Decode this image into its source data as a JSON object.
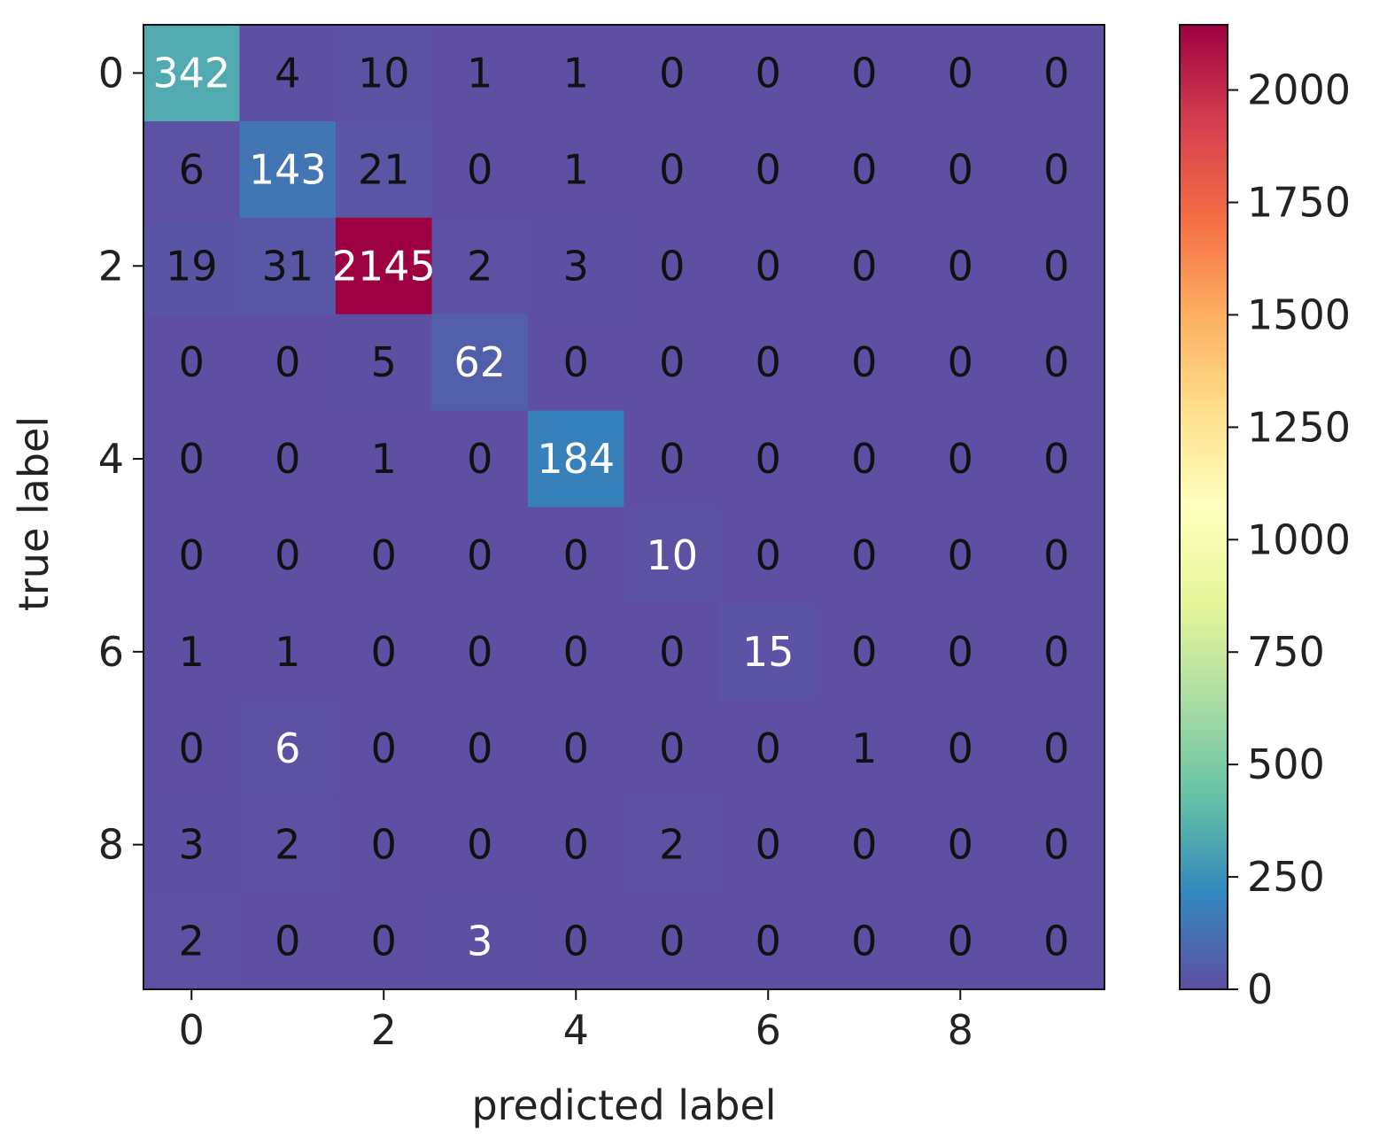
{
  "chart_data": {
    "type": "heatmap",
    "title": "",
    "xlabel": "predicted label",
    "ylabel": "true label",
    "rows": [
      0,
      1,
      2,
      3,
      4,
      5,
      6,
      7,
      8,
      9
    ],
    "cols": [
      0,
      1,
      2,
      3,
      4,
      5,
      6,
      7,
      8,
      9
    ],
    "x_ticks": [
      "0",
      "2",
      "4",
      "6",
      "8"
    ],
    "y_ticks": [
      "0",
      "2",
      "4",
      "6",
      "8"
    ],
    "matrix": [
      [
        342,
        4,
        10,
        1,
        1,
        0,
        0,
        0,
        0,
        0
      ],
      [
        6,
        143,
        21,
        0,
        1,
        0,
        0,
        0,
        0,
        0
      ],
      [
        19,
        31,
        2145,
        2,
        3,
        0,
        0,
        0,
        0,
        0
      ],
      [
        0,
        0,
        5,
        62,
        0,
        0,
        0,
        0,
        0,
        0
      ],
      [
        0,
        0,
        1,
        0,
        184,
        0,
        0,
        0,
        0,
        0
      ],
      [
        0,
        0,
        0,
        0,
        0,
        10,
        0,
        0,
        0,
        0
      ],
      [
        1,
        1,
        0,
        0,
        0,
        0,
        15,
        0,
        0,
        0
      ],
      [
        0,
        6,
        0,
        0,
        0,
        0,
        0,
        1,
        0,
        0
      ],
      [
        3,
        2,
        0,
        0,
        0,
        2,
        0,
        0,
        0,
        0
      ],
      [
        2,
        0,
        0,
        3,
        0,
        0,
        0,
        0,
        0,
        0
      ]
    ],
    "white_text_cells": [
      [
        0,
        0
      ],
      [
        1,
        1
      ],
      [
        2,
        2
      ],
      [
        3,
        3
      ],
      [
        4,
        4
      ],
      [
        5,
        5
      ],
      [
        6,
        6
      ],
      [
        7,
        1
      ],
      [
        9,
        3
      ]
    ],
    "colormap": "Spectral_r",
    "colorbar": {
      "min": 0,
      "max": 2145,
      "ticks": [
        0,
        250,
        500,
        750,
        1000,
        1250,
        1500,
        1750,
        2000
      ],
      "tick_labels": [
        "0",
        "250",
        "500",
        "750",
        "1000",
        "1250",
        "1500",
        "1750",
        "2000"
      ]
    },
    "grid": false
  }
}
